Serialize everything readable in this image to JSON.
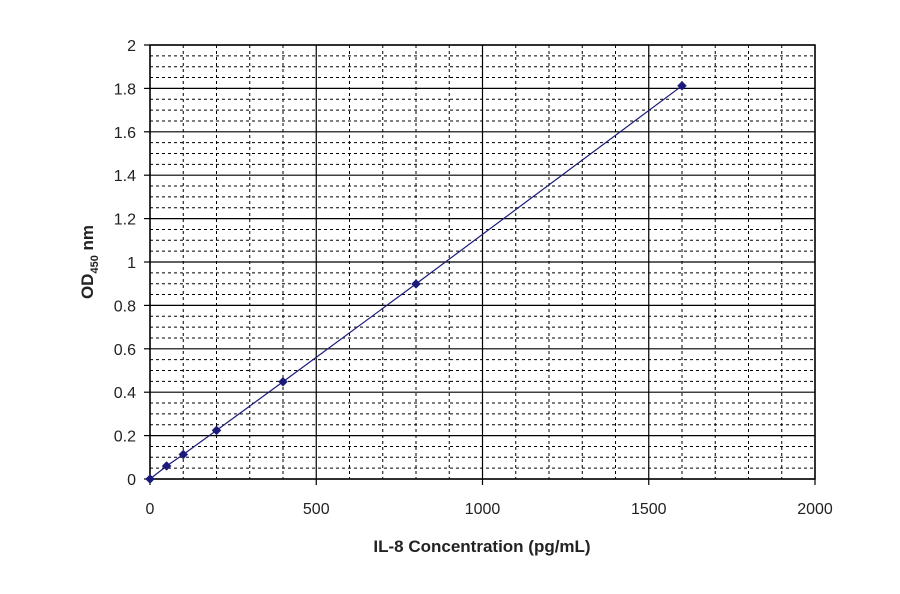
{
  "chart_data": {
    "type": "scatter",
    "title": "",
    "xlabel": "IL-8 Concentration (pg/mL)",
    "ylabel": {
      "main": "OD",
      "subscript": "450",
      "suffix": " nm"
    },
    "xlim": [
      0,
      2000
    ],
    "ylim": [
      0,
      2
    ],
    "xticks": [
      0,
      500,
      1000,
      1500,
      2000
    ],
    "yticks": [
      0,
      0.2,
      0.4,
      0.6,
      0.8,
      1,
      1.2,
      1.4,
      1.6,
      1.8,
      2
    ],
    "x_minor_divisions": 5,
    "y_minor_divisions": 4,
    "grid": true,
    "series": [
      {
        "x": [
          0,
          50,
          100,
          200,
          400,
          800,
          1600
        ],
        "y": [
          0,
          0.06,
          0.113,
          0.224,
          0.448,
          0.899,
          1.812
        ],
        "color": "#1a1a7a",
        "marker": "diamond",
        "line": "connected"
      }
    ]
  }
}
